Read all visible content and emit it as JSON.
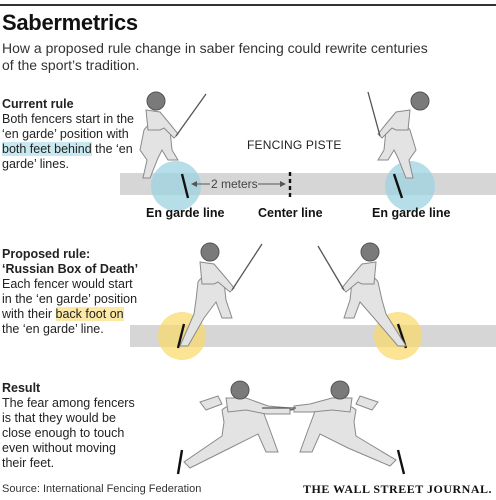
{
  "header": {
    "title": "Sabermetrics",
    "subtitle": "How a proposed rule change in saber fencing could rewrite centuries of the sport’s tradition."
  },
  "current": {
    "heading": "Current rule",
    "text_before": "Both fencers start in the ‘en garde’ position with ",
    "highlight": "both feet behind",
    "text_after": " the ‘en garde’ lines."
  },
  "proposed": {
    "heading": "Proposed rule: ‘Russian Box of Death’",
    "text_before": "Each fencer would start in the ‘en garde’ position with their ",
    "highlight": "back foot on",
    "text_after": " the ‘en garde’ line."
  },
  "result": {
    "heading": "Result",
    "text": "The fear among fencers is that they would be close enough to touch even without moving their feet."
  },
  "diagram": {
    "piste_label": "FENCING PISTE",
    "distance_label": "2 meters",
    "en_garde_left": "En garde line",
    "center_line": "Center line",
    "en_garde_right": "En garde line"
  },
  "colors": {
    "current_highlight": "#c9e9f0",
    "proposed_highlight": "#fde9a6",
    "piste": "#d6d6d6"
  },
  "footer": {
    "source": "Source: International Fencing Federation",
    "brand": "THE WALL STREET JOURNAL."
  }
}
